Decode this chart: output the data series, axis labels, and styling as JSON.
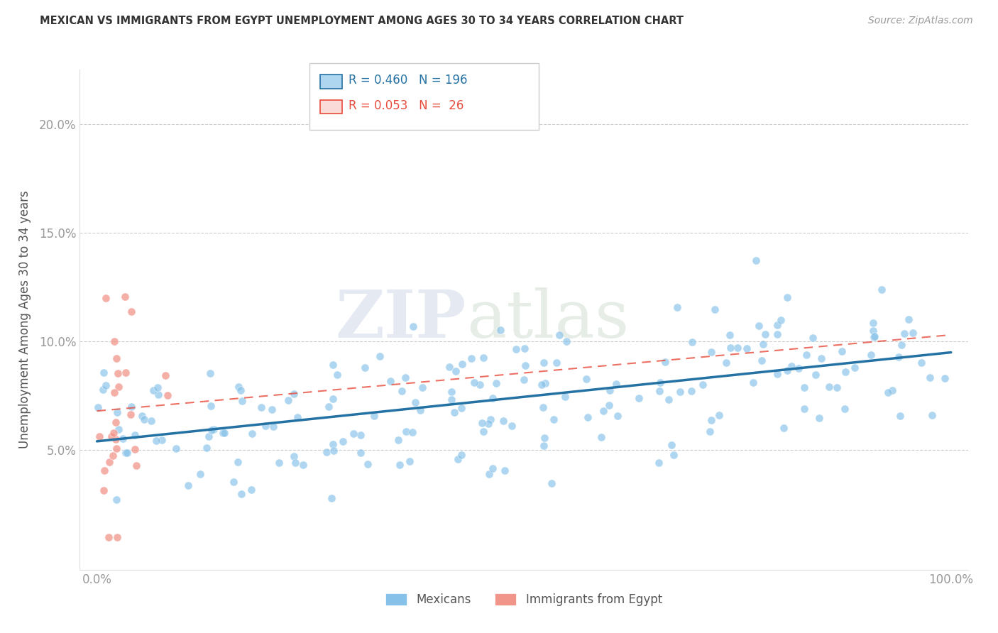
{
  "title": "MEXICAN VS IMMIGRANTS FROM EGYPT UNEMPLOYMENT AMONG AGES 30 TO 34 YEARS CORRELATION CHART",
  "source": "Source: ZipAtlas.com",
  "ylabel": "Unemployment Among Ages 30 to 34 years",
  "xlim": [
    -0.02,
    1.02
  ],
  "ylim": [
    -0.005,
    0.225
  ],
  "xticks": [
    0.0,
    0.25,
    0.5,
    0.75,
    1.0
  ],
  "xticklabels": [
    "0.0%",
    "",
    "",
    "",
    "100.0%"
  ],
  "yticks": [
    0.05,
    0.1,
    0.15,
    0.2
  ],
  "yticklabels": [
    "5.0%",
    "10.0%",
    "15.0%",
    "20.0%"
  ],
  "r_mexican": 0.46,
  "n_mexican": 196,
  "r_egypt": 0.053,
  "n_egypt": 26,
  "watermark_zip": "ZIP",
  "watermark_atlas": "atlas",
  "scatter_mexican_color": "#85C1E9",
  "scatter_egypt_color": "#F1948A",
  "trendline_mexican_color": "#2471A3",
  "trendline_egypt_color": "#E74C3C",
  "legend_mexican_face": "#AED6F1",
  "legend_egypt_face": "#FADBD8",
  "legend_mexican_edge": "#2471A3",
  "legend_egypt_edge": "#E74C3C",
  "legend_text_mexican": "#2471A3",
  "legend_text_egypt": "#E74C3C",
  "background_color": "#ffffff",
  "grid_color": "#CCCCCC",
  "title_color": "#333333",
  "axis_label_color": "#555555",
  "tick_color": "#999999"
}
